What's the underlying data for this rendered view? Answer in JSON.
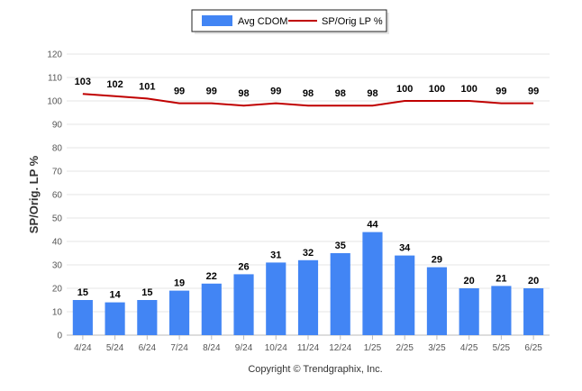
{
  "chart_data": {
    "type": "bar",
    "categories": [
      "4/24",
      "5/24",
      "6/24",
      "7/24",
      "8/24",
      "9/24",
      "10/24",
      "11/24",
      "12/24",
      "1/25",
      "2/25",
      "3/25",
      "4/25",
      "5/25",
      "6/25"
    ],
    "series": [
      {
        "name": "Avg CDOM",
        "type": "bar",
        "color": "#4285f4",
        "values": [
          15,
          14,
          15,
          19,
          22,
          26,
          31,
          32,
          35,
          44,
          34,
          29,
          20,
          21,
          20
        ]
      },
      {
        "name": "SP/Orig LP %",
        "type": "line",
        "color": "#c00000",
        "values": [
          103,
          102,
          101,
          99,
          99,
          98,
          99,
          98,
          98,
          98,
          100,
          100,
          100,
          99,
          99
        ]
      }
    ],
    "ylabel": "SP/Orig. LP %",
    "ylim": [
      0,
      120
    ],
    "yticks": [
      0,
      10,
      20,
      30,
      40,
      50,
      60,
      70,
      80,
      90,
      100,
      110,
      120
    ],
    "grid": true,
    "legend": "top-center",
    "data_labels": true
  },
  "footer": {
    "copyright": "Copyright © Trendgraphix, Inc."
  }
}
